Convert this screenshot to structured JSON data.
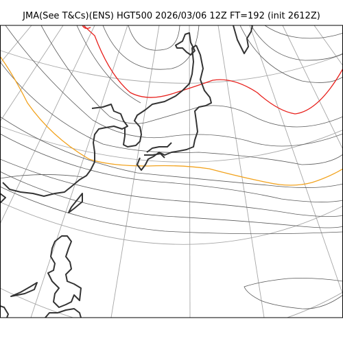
{
  "title": "JMA(See T&Cs)(ENS) HGT500 2026/03/06 12Z FT=192 (init 2612Z)",
  "map": {
    "projection": "polar-stereographic",
    "colors": {
      "frame": "#000000",
      "graticule": "#a6a6a6",
      "contour": "#5a5a5a",
      "highlight_contour_1": "#e8201c",
      "highlight_contour_2": "#f2a21c",
      "coastline": "#333333"
    }
  }
}
